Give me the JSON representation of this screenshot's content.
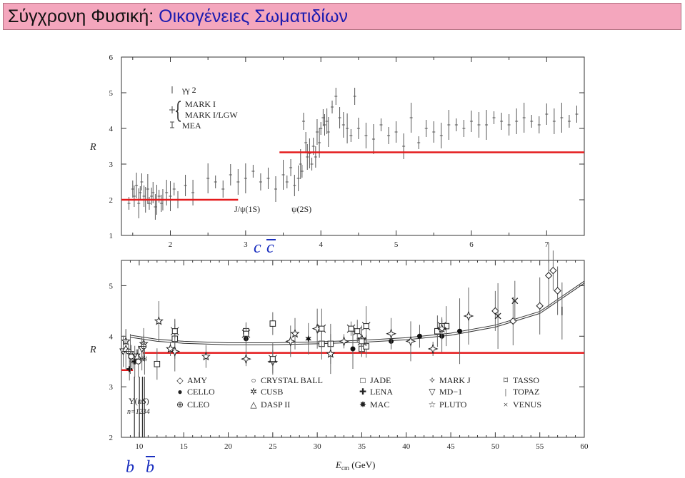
{
  "header": {
    "prefix": "Σύγχρονη Φυσική: ",
    "title": "Οικογένειες Σωματιδίων"
  },
  "chart_data": [
    {
      "type": "scatter",
      "ylabel": "R",
      "xlim": [
        1.35,
        7.5
      ],
      "ylim": [
        1,
        6
      ],
      "xticks": [
        "2",
        "3",
        "4",
        "5",
        "6",
        "7"
      ],
      "yticks": [
        "1",
        "2",
        "3",
        "4",
        "5",
        "6"
      ],
      "legend": [
        "γγ 2",
        "MARK I",
        "MARK I/LGW",
        "MEA"
      ],
      "annotations": {
        "jpsi": "J/ψ(1S)",
        "psi2s": "ψ(2S)",
        "quark_c": "c",
        "quark_cbar": "c"
      },
      "colors": {
        "reference_line": "#e41a1c",
        "quark_label": "#1a2fbf",
        "data": "#333333"
      },
      "reference_lines": [
        {
          "x": [
            1.35,
            2.9
          ],
          "y": 2.0
        },
        {
          "x": [
            3.45,
            7.5
          ],
          "y": 3.33
        }
      ],
      "series": [
        {
          "marker": "errorbar",
          "x": [
            1.45,
            1.5,
            1.52,
            1.55,
            1.58,
            1.6,
            1.62,
            1.65,
            1.67,
            1.7,
            1.72,
            1.75,
            1.77,
            1.8,
            1.82,
            1.85,
            1.88,
            1.9,
            1.95,
            2.0,
            2.05,
            2.1,
            2.2,
            2.3,
            2.5,
            2.6,
            2.7,
            2.8,
            2.9,
            3.0,
            3.1,
            3.2,
            3.3,
            3.4,
            3.5,
            3.55,
            3.6,
            3.65,
            3.7,
            3.73,
            3.75,
            3.77,
            3.8,
            3.82,
            3.85,
            3.88,
            3.9,
            3.93,
            3.95,
            3.98,
            4.0,
            4.03,
            4.05,
            4.08,
            4.1,
            4.15,
            4.2,
            4.25,
            4.3,
            4.35,
            4.4,
            4.45,
            4.5,
            4.6,
            4.7,
            4.8,
            4.9,
            5.0,
            5.1,
            5.2,
            5.3,
            5.4,
            5.5,
            5.6,
            5.7,
            5.8,
            5.9,
            6.0,
            6.1,
            6.2,
            6.3,
            6.4,
            6.5,
            6.6,
            6.7,
            6.8,
            6.9,
            7.0,
            7.1,
            7.2,
            7.3,
            7.4
          ],
          "y": [
            1.9,
            2.3,
            2.1,
            2.4,
            1.9,
            2.2,
            2.5,
            2.1,
            2.0,
            2.3,
            1.9,
            2.1,
            2.2,
            1.8,
            2.0,
            2.1,
            1.9,
            2.0,
            2.2,
            2.1,
            2.3,
            2.0,
            2.4,
            2.2,
            2.6,
            2.5,
            2.3,
            2.7,
            2.5,
            2.6,
            2.8,
            2.5,
            2.6,
            2.3,
            2.7,
            2.5,
            2.9,
            2.4,
            2.6,
            3.0,
            2.8,
            4.2,
            3.6,
            3.2,
            3.3,
            3.0,
            3.5,
            3.2,
            3.9,
            3.6,
            4.0,
            4.3,
            4.1,
            4.2,
            3.9,
            4.6,
            4.9,
            4.3,
            4.1,
            4.0,
            3.8,
            4.9,
            4.0,
            3.8,
            3.7,
            4.1,
            3.8,
            3.9,
            3.5,
            4.3,
            3.6,
            4.0,
            3.9,
            3.8,
            4.1,
            4.1,
            4.0,
            4.2,
            4.1,
            4.1,
            4.3,
            4.2,
            4.1,
            4.2,
            4.3,
            4.2,
            4.1,
            4.4,
            4.2,
            4.3,
            4.2,
            4.4
          ]
        }
      ]
    },
    {
      "type": "scatter",
      "xlabel": "Ecm (GeV)",
      "xlabel_main": "E",
      "xlabel_sub": "cm",
      "xlabel_unit": " (GeV)",
      "ylabel": "R",
      "xlim": [
        8,
        60
      ],
      "ylim": [
        2,
        5.5
      ],
      "xticks": [
        "10",
        "15",
        "20",
        "25",
        "30",
        "35",
        "40",
        "45",
        "50",
        "55",
        "60"
      ],
      "yticks": [
        "2",
        "3",
        "4",
        "5"
      ],
      "legend": [
        {
          "symbol": "◇",
          "label": "AMY"
        },
        {
          "symbol": "○",
          "label": "CRYSTAL BALL"
        },
        {
          "symbol": "□",
          "label": "JADE"
        },
        {
          "symbol": "✧",
          "label": "MARK J"
        },
        {
          "symbol": "⌑",
          "label": "TASSO"
        },
        {
          "symbol": "●",
          "label": "CELLO"
        },
        {
          "symbol": "✲",
          "label": "CUSB"
        },
        {
          "symbol": "✚",
          "label": "LENA"
        },
        {
          "symbol": "▽",
          "label": "MD−1"
        },
        {
          "symbol": "|",
          "label": "TOPAZ"
        },
        {
          "symbol": "⊕",
          "label": "CLEO"
        },
        {
          "symbol": "△",
          "label": "DASP II"
        },
        {
          "symbol": "✸",
          "label": "MAC"
        },
        {
          "symbol": "☆",
          "label": "PLUTO"
        },
        {
          "symbol": "×",
          "label": "VENUS"
        }
      ],
      "annotations": {
        "upsilon_main": "Υ(",
        "upsilon_ns": "nS",
        "upsilon_close": ")",
        "upsilon_n": "n=1234",
        "quark_b": "b",
        "quark_bbar": "b"
      },
      "colors": {
        "reference_line": "#e41a1c",
        "quark_label": "#1a2fbf",
        "data": "#333333"
      },
      "reference_lines": [
        {
          "x": [
            8,
            9.3
          ],
          "y": 3.33
        },
        {
          "x": [
            10.4,
            60
          ],
          "y": 3.67
        }
      ],
      "theory_curve": {
        "x": [
          9,
          12,
          15,
          20,
          25,
          30,
          35,
          40,
          45,
          50,
          55,
          60
        ],
        "y": [
          3.98,
          3.9,
          3.86,
          3.83,
          3.83,
          3.85,
          3.88,
          3.93,
          4.02,
          4.18,
          4.45,
          5.05
        ]
      },
      "series": [
        {
          "name": "AMY",
          "marker": "diamond",
          "x": [
            50,
            52,
            55,
            56,
            56.5,
            57
          ],
          "y": [
            4.5,
            4.3,
            4.6,
            5.2,
            5.3,
            4.9
          ]
        },
        {
          "name": "CELLO",
          "marker": "circle-filled",
          "x": [
            14,
            22,
            34,
            38.3,
            41.5,
            44,
            46
          ],
          "y": [
            4.1,
            3.95,
            3.75,
            3.9,
            4.0,
            4.0,
            4.1
          ]
        },
        {
          "name": "JADE",
          "marker": "square",
          "x": [
            12,
            14,
            22,
            25,
            30.5,
            31.5,
            35,
            35.5,
            43.5,
            44.5
          ],
          "y": [
            3.45,
            3.95,
            4.1,
            4.25,
            3.85,
            3.85,
            3.75,
            3.8,
            4.1,
            4.2
          ]
        },
        {
          "name": "MARK J",
          "marker": "star4",
          "x": [
            14,
            22,
            25,
            27,
            30,
            33,
            35,
            38.3,
            40.5,
            43,
            44,
            47
          ],
          "y": [
            3.7,
            3.55,
            3.5,
            3.9,
            4.15,
            3.9,
            3.95,
            4.05,
            3.9,
            3.75,
            4.15,
            4.4
          ]
        },
        {
          "name": "TASSO",
          "marker": "tasso",
          "x": [
            14,
            22,
            25,
            30.5,
            33.8,
            34.5,
            35,
            35.5,
            44
          ],
          "y": [
            4.1,
            4.05,
            3.55,
            4.15,
            4.15,
            4.1,
            3.9,
            4.2,
            4.2
          ]
        },
        {
          "name": "PLUTO",
          "marker": "star5",
          "x": [
            8.5,
            10.5,
            12.2,
            13.5,
            17.5,
            27.5,
            31.5,
            44
          ],
          "y": [
            3.9,
            3.85,
            4.3,
            3.75,
            3.6,
            4.05,
            3.65,
            4.15
          ]
        },
        {
          "name": "MAC",
          "marker": "star6",
          "x": [
            29
          ],
          "y": [
            3.95
          ]
        },
        {
          "name": "VENUS",
          "marker": "cross",
          "x": [
            50.3,
            52.2
          ],
          "y": [
            4.4,
            4.7
          ]
        },
        {
          "name": "CUSB",
          "marker": "spark",
          "x": [
            9.3,
            10.3,
            10.6
          ],
          "y": [
            3.5,
            3.55,
            3.55
          ]
        },
        {
          "name": "LENA",
          "marker": "plus",
          "x": [
            8.9,
            9.5
          ],
          "y": [
            3.35,
            3.5
          ]
        },
        {
          "name": "MD−1",
          "marker": "triangle-down",
          "x": [
            8.2,
            9,
            9.7,
            10.3
          ],
          "y": [
            3.7,
            3.65,
            3.6,
            3.75
          ]
        },
        {
          "name": "DASP II",
          "marker": "triangle-up",
          "x": [
            8.5,
            9.8
          ],
          "y": [
            3.75,
            3.6
          ]
        },
        {
          "name": "CLEO",
          "marker": "circle-plus",
          "x": [
            8.8,
            10.5
          ],
          "y": [
            3.7,
            3.8
          ]
        },
        {
          "name": "CRYSTAL BALL",
          "marker": "circle",
          "x": [
            9.1,
            9.9
          ],
          "y": [
            3.6,
            3.5
          ]
        },
        {
          "name": "TOPAZ",
          "marker": "bar",
          "x": [
            57.5
          ],
          "y": [
            4.5
          ]
        }
      ]
    }
  ]
}
